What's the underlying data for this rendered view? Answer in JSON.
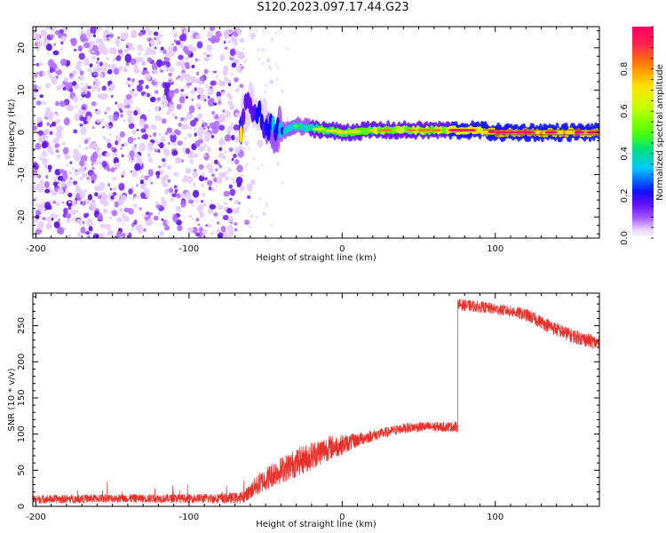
{
  "title": "S120.2023.097.17.44.G23",
  "chart_data": [
    {
      "type": "heatmap",
      "xlabel": "Height of straight line (km)",
      "ylabel": "Frequency (Hz)",
      "xlim": [
        -202,
        168
      ],
      "ylim": [
        -25,
        25
      ],
      "xticks": [
        -200,
        -100,
        0,
        100
      ],
      "yticks": [
        -20,
        -10,
        0,
        10,
        20
      ],
      "colorbar": {
        "label": "Normalized spectral amplitude",
        "range": [
          0,
          1
        ],
        "ticks": [
          0.0,
          0.2,
          0.4,
          0.6,
          0.8
        ],
        "colormap": [
          "#ffffff",
          "#e8d0ff",
          "#a050ff",
          "#6010ff",
          "#1010ff",
          "#00c8ff",
          "#00e080",
          "#50ff00",
          "#c8ff00",
          "#ffe000",
          "#ff8000",
          "#ff2050",
          "#ff0060"
        ]
      },
      "noise_region_x": [
        -202,
        -65
      ],
      "signal_track": [
        {
          "x": -65,
          "f": 5,
          "amp": 0.25
        },
        {
          "x": -60,
          "f": 6,
          "amp": 0.25
        },
        {
          "x": -55,
          "f": 4,
          "amp": 0.3
        },
        {
          "x": -50,
          "f": 2,
          "amp": 0.35
        },
        {
          "x": -45,
          "f": 0,
          "amp": 0.4
        },
        {
          "x": -40,
          "f": 0,
          "amp": 0.45
        },
        {
          "x": -30,
          "f": 1.5,
          "amp": 0.55
        },
        {
          "x": -20,
          "f": 1,
          "amp": 0.6
        },
        {
          "x": -10,
          "f": 0.5,
          "amp": 0.65
        },
        {
          "x": 0,
          "f": 0,
          "amp": 0.7
        },
        {
          "x": 20,
          "f": 0.5,
          "amp": 0.72
        },
        {
          "x": 40,
          "f": 0.5,
          "amp": 0.78
        },
        {
          "x": 60,
          "f": 0.5,
          "amp": 0.8
        },
        {
          "x": 75,
          "f": 0.5,
          "amp": 0.85
        },
        {
          "x": 90,
          "f": 0.5,
          "amp": 0.9
        },
        {
          "x": 100,
          "f": 0,
          "amp": 0.95
        },
        {
          "x": 120,
          "f": 0,
          "amp": 0.95
        },
        {
          "x": 140,
          "f": 0,
          "amp": 0.95
        },
        {
          "x": 168,
          "f": 0,
          "amp": 0.95
        }
      ]
    },
    {
      "type": "line",
      "xlabel": "Height of straight line (km)",
      "ylabel": "SNR (10 * v/v)",
      "xlim": [
        -202,
        168
      ],
      "ylim": [
        0,
        295
      ],
      "xticks": [
        -200,
        -100,
        0,
        100
      ],
      "yticks": [
        0,
        50,
        100,
        150,
        200,
        250
      ],
      "color": "#e8302a",
      "series": [
        {
          "x": [
            -202,
            -180,
            -160,
            -140,
            -120,
            -100,
            -80,
            -65,
            -55,
            -45,
            -30,
            -20,
            -10,
            0,
            10,
            20,
            30,
            40,
            50,
            60,
            70,
            75,
            76,
            80,
            90,
            100,
            110,
            120,
            130,
            140,
            150,
            160,
            168
          ],
          "y": [
            10,
            10,
            11,
            11,
            11,
            11,
            11,
            12,
            30,
            45,
            60,
            70,
            80,
            85,
            92,
            98,
            103,
            108,
            110,
            110,
            110,
            110,
            280,
            278,
            276,
            273,
            270,
            265,
            255,
            245,
            236,
            230,
            225
          ],
          "noise": [
            6,
            6,
            6,
            6,
            6,
            6,
            7,
            8,
            15,
            18,
            20,
            20,
            18,
            14,
            10,
            8,
            7,
            7,
            7,
            7,
            7,
            7,
            8,
            8,
            8,
            8,
            8,
            9,
            9,
            10,
            10,
            10,
            10
          ]
        }
      ]
    }
  ]
}
